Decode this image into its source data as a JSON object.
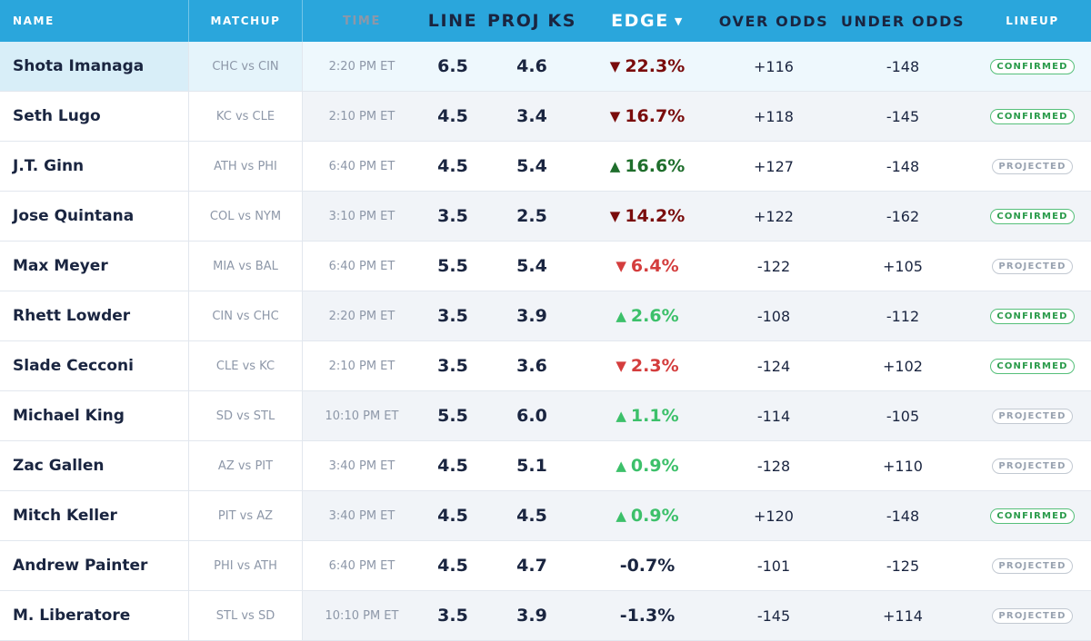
{
  "header": {
    "name": "NAME",
    "matchup": "MATCHUP",
    "time": "TIME",
    "line": "LINE",
    "proj": "PROJ KS",
    "edge": "EDGE",
    "edge_sort_glyph": "▼",
    "over": "OVER ODDS",
    "under": "UNDER ODDS",
    "lineup": "LINEUP"
  },
  "colors": {
    "header_bg": "#2aa6dc",
    "edge_down_strong": "#7a0c0c",
    "edge_down_mild": "#d43d3d",
    "edge_up_strong": "#1f6e2c",
    "edge_up_mild": "#3cc06a",
    "confirmed": "#2a9b4a",
    "projected": "#98a2b0",
    "selected_row": "#d8eef8"
  },
  "rows": [
    {
      "name": "Shota Imanaga",
      "matchup": "CHC vs CIN",
      "time": "2:20 PM ET",
      "line": "6.5",
      "proj": "4.6",
      "edge_glyph": "▼",
      "edge": "22.3%",
      "over": "+116",
      "under": "-148",
      "lineup": "CONFIRMED",
      "edge_style": "down-strong",
      "lineup_style": "confirmed",
      "selected": true
    },
    {
      "name": "Seth Lugo",
      "matchup": "KC vs CLE",
      "time": "2:10 PM ET",
      "line": "4.5",
      "proj": "3.4",
      "edge_glyph": "▼",
      "edge": "16.7%",
      "over": "+118",
      "under": "-145",
      "lineup": "CONFIRMED",
      "edge_style": "down-strong",
      "lineup_style": "confirmed"
    },
    {
      "name": "J.T. Ginn",
      "matchup": "ATH vs PHI",
      "time": "6:40 PM ET",
      "line": "4.5",
      "proj": "5.4",
      "edge_glyph": "▲",
      "edge": "16.6%",
      "over": "+127",
      "under": "-148",
      "lineup": "PROJECTED",
      "edge_style": "up-strong",
      "lineup_style": "projected"
    },
    {
      "name": "Jose Quintana",
      "matchup": "COL vs NYM",
      "time": "3:10 PM ET",
      "line": "3.5",
      "proj": "2.5",
      "edge_glyph": "▼",
      "edge": "14.2%",
      "over": "+122",
      "under": "-162",
      "lineup": "CONFIRMED",
      "edge_style": "down-strong",
      "lineup_style": "confirmed"
    },
    {
      "name": "Max Meyer",
      "matchup": "MIA vs BAL",
      "time": "6:40 PM ET",
      "line": "5.5",
      "proj": "5.4",
      "edge_glyph": "▼",
      "edge": "6.4%",
      "over": "-122",
      "under": "+105",
      "lineup": "PROJECTED",
      "edge_style": "down-mild",
      "lineup_style": "projected"
    },
    {
      "name": "Rhett Lowder",
      "matchup": "CIN vs CHC",
      "time": "2:20 PM ET",
      "line": "3.5",
      "proj": "3.9",
      "edge_glyph": "▲",
      "edge": "2.6%",
      "over": "-108",
      "under": "-112",
      "lineup": "CONFIRMED",
      "edge_style": "up-mild",
      "lineup_style": "confirmed"
    },
    {
      "name": "Slade Cecconi",
      "matchup": "CLE vs KC",
      "time": "2:10 PM ET",
      "line": "3.5",
      "proj": "3.6",
      "edge_glyph": "▼",
      "edge": "2.3%",
      "over": "-124",
      "under": "+102",
      "lineup": "CONFIRMED",
      "edge_style": "down-mild",
      "lineup_style": "confirmed"
    },
    {
      "name": "Michael King",
      "matchup": "SD vs STL",
      "time": "10:10 PM ET",
      "line": "5.5",
      "proj": "6.0",
      "edge_glyph": "▲",
      "edge": "1.1%",
      "over": "-114",
      "under": "-105",
      "lineup": "PROJECTED",
      "edge_style": "up-mild",
      "lineup_style": "projected"
    },
    {
      "name": "Zac Gallen",
      "matchup": "AZ vs PIT",
      "time": "3:40 PM ET",
      "line": "4.5",
      "proj": "5.1",
      "edge_glyph": "▲",
      "edge": "0.9%",
      "over": "-128",
      "under": "+110",
      "lineup": "PROJECTED",
      "edge_style": "up-mild",
      "lineup_style": "projected"
    },
    {
      "name": "Mitch Keller",
      "matchup": "PIT vs AZ",
      "time": "3:40 PM ET",
      "line": "4.5",
      "proj": "4.5",
      "edge_glyph": "▲",
      "edge": "0.9%",
      "over": "+120",
      "under": "-148",
      "lineup": "CONFIRMED",
      "edge_style": "up-mild",
      "lineup_style": "confirmed"
    },
    {
      "name": "Andrew Painter",
      "matchup": "PHI vs ATH",
      "time": "6:40 PM ET",
      "line": "4.5",
      "proj": "4.7",
      "edge_glyph": "",
      "edge": "-0.7%",
      "over": "-101",
      "under": "-125",
      "lineup": "PROJECTED",
      "edge_style": "neutral",
      "lineup_style": "projected"
    },
    {
      "name": "M. Liberatore",
      "matchup": "STL vs SD",
      "time": "10:10 PM ET",
      "line": "3.5",
      "proj": "3.9",
      "edge_glyph": "",
      "edge": "-1.3%",
      "over": "-145",
      "under": "+114",
      "lineup": "PROJECTED",
      "edge_style": "neutral",
      "lineup_style": "projected"
    }
  ]
}
